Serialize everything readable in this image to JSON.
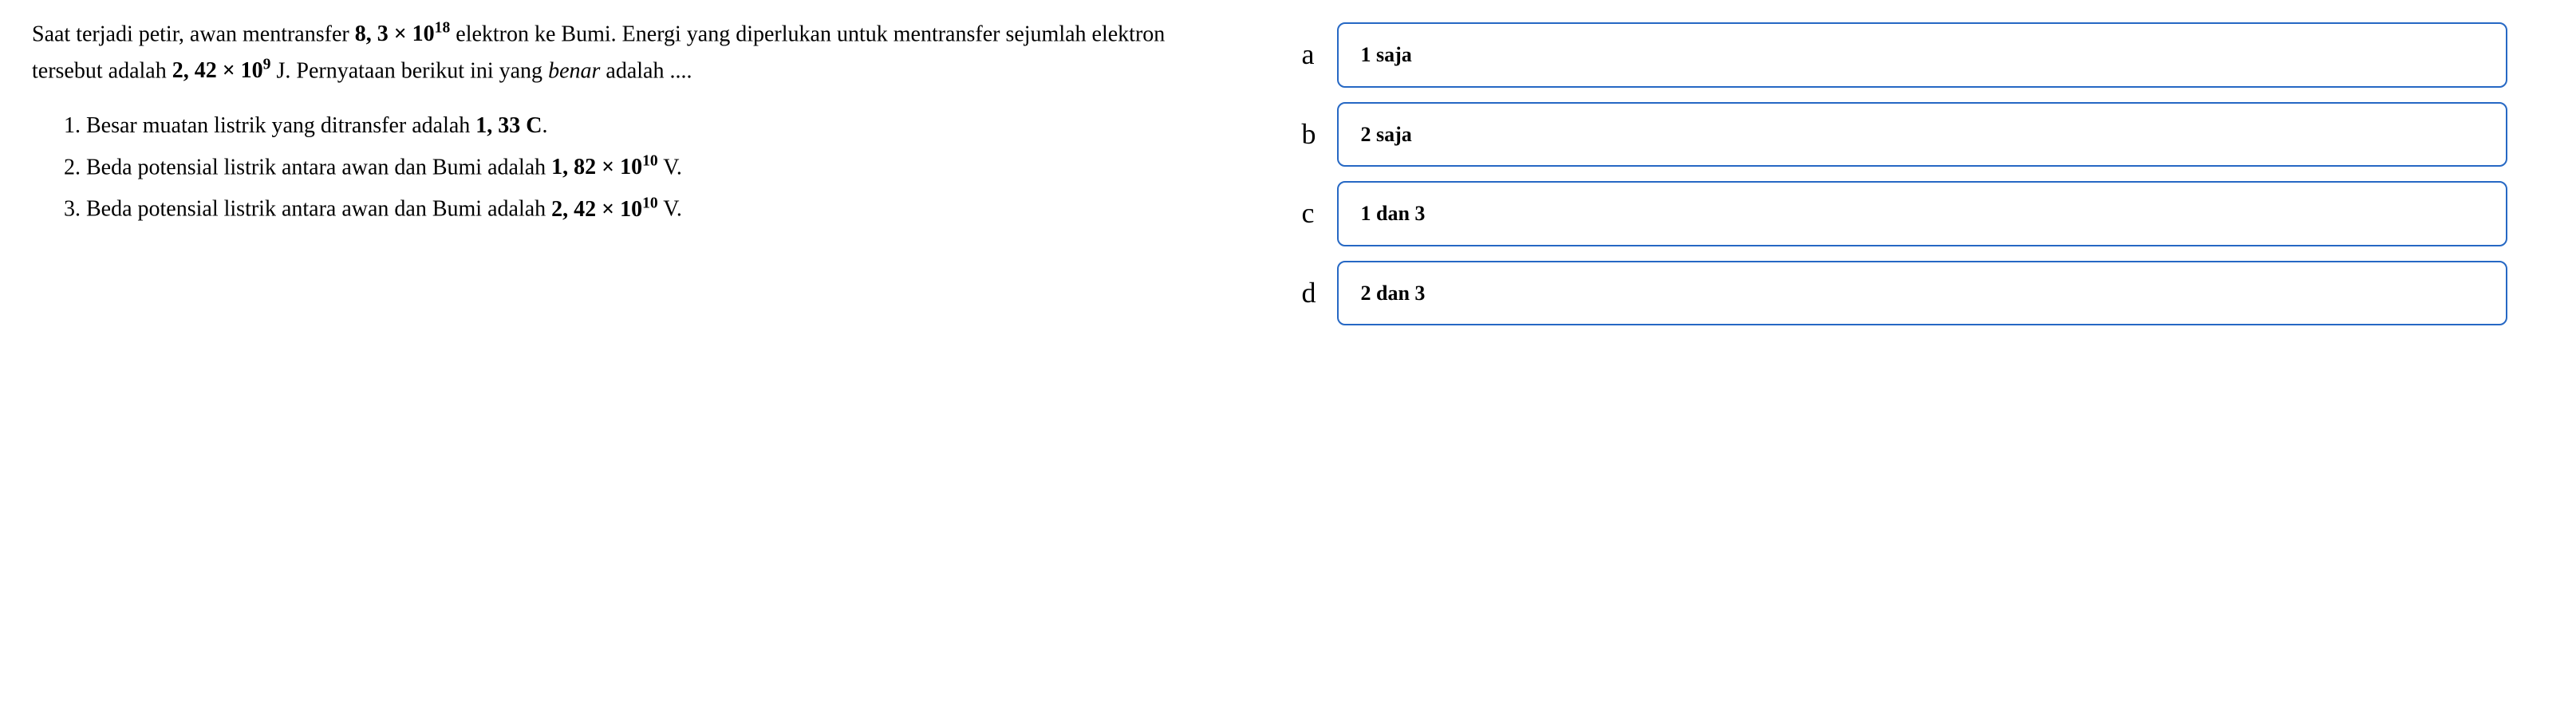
{
  "question": {
    "para1_part1": "Saat terjadi petir, awan mentransfer ",
    "para1_val1_base": "8, 3 × 10",
    "para1_val1_exp": "18",
    "para1_part2": " elektron ke Bumi. Energi yang diperlukan untuk mentransfer sejumlah elektron tersebut adalah ",
    "para1_val2_base": "2, 42 × 10",
    "para1_val2_exp": "9",
    "para1_part3": " J. Pernyataan berikut ini yang ",
    "para1_emph": "benar",
    "para1_part4": " adalah ...."
  },
  "statements": [
    {
      "num": "1. ",
      "prefix": "Besar muatan listrik yang ditransfer adalah ",
      "value": "1, 33 C",
      "exp": "",
      "suffix": "."
    },
    {
      "num": "2. ",
      "prefix": "Beda potensial listrik antara awan dan Bumi adalah ",
      "value": "1, 82 × 10",
      "exp": "10",
      "suffix": " V."
    },
    {
      "num": "3. ",
      "prefix": "Beda potensial listrik antara awan dan Bumi adalah ",
      "value": "2, 42 × 10",
      "exp": "10",
      "suffix": " V."
    }
  ],
  "options": [
    {
      "letter": "a",
      "text": "1 saja"
    },
    {
      "letter": "b",
      "text": "2 saja"
    },
    {
      "letter": "c",
      "text": "1 dan 3"
    },
    {
      "letter": "d",
      "text": "2 dan 3"
    }
  ],
  "style": {
    "border_color": "#2668c4",
    "background_color": "#ffffff",
    "text_color": "#000000",
    "question_fontsize": 28,
    "option_letter_fontsize": 36,
    "option_text_fontsize": 26,
    "border_radius": 10,
    "border_width": 2
  }
}
